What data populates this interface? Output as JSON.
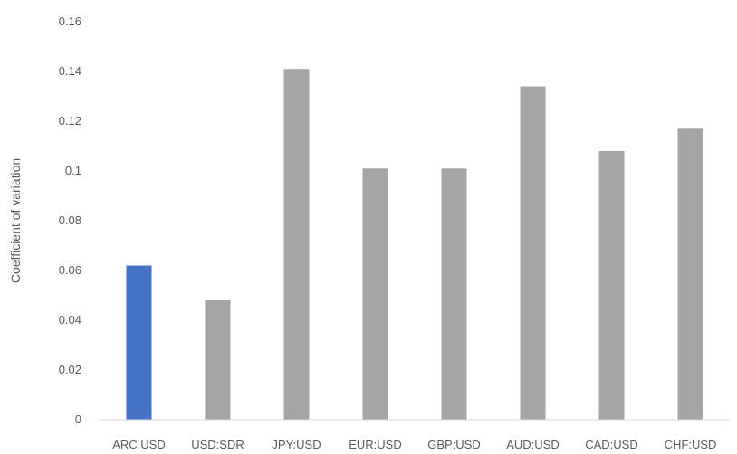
{
  "chart_data": {
    "type": "bar",
    "title": "",
    "xlabel": "",
    "ylabel": "Coefficient of variation",
    "ylim": [
      0,
      0.16
    ],
    "yticks": [
      0,
      0.02,
      0.04,
      0.06,
      0.08,
      0.1,
      0.12,
      0.14,
      0.16
    ],
    "ytick_labels": [
      "0",
      "0.02",
      "0.04",
      "0.06",
      "0.08",
      "0.1",
      "0.12",
      "0.14",
      "0.16"
    ],
    "grid": false,
    "legend": "none",
    "categories": [
      "ARC:USD",
      "USD:SDR",
      "JPY:USD",
      "EUR:USD",
      "GBP:USD",
      "AUD:USD",
      "CAD:USD",
      "CHF:USD"
    ],
    "values": [
      0.062,
      0.048,
      0.141,
      0.101,
      0.101,
      0.134,
      0.108,
      0.117
    ],
    "bar_colors": [
      "#4472C4",
      "#A5A5A5",
      "#A5A5A5",
      "#A5A5A5",
      "#A5A5A5",
      "#A5A5A5",
      "#A5A5A5",
      "#A5A5A5"
    ],
    "axis_color": "#D9D9D9",
    "text_color": "#595959"
  }
}
